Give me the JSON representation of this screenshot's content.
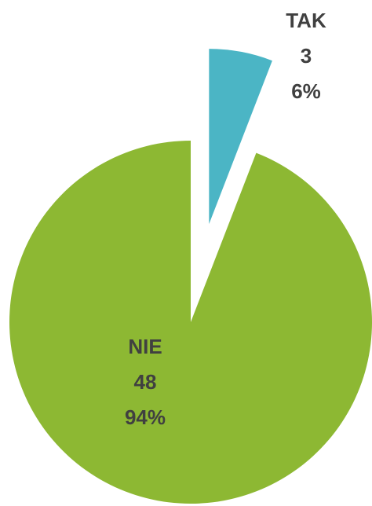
{
  "chart_data": {
    "type": "pie",
    "categories": [
      "TAK",
      "NIE"
    ],
    "values": [
      3,
      48
    ],
    "percent_labels": [
      "6%",
      "94%"
    ],
    "colors": [
      "#4bb5c5",
      "#8db833"
    ],
    "exploded": [
      true,
      false
    ]
  }
}
